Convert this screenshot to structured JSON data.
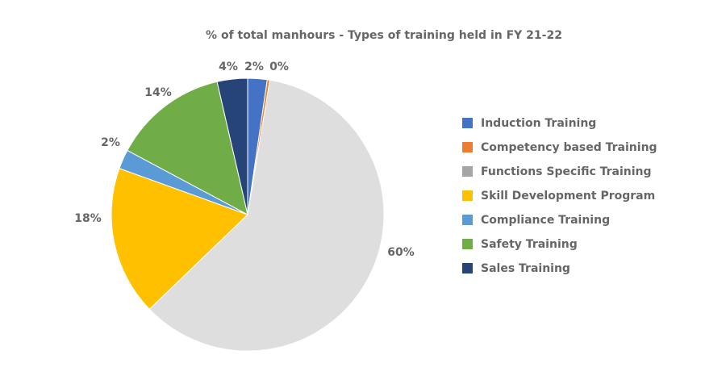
{
  "chart_data": {
    "type": "pie",
    "title": "% of total manhours - Types of training held in FY 21-22",
    "categories": [
      "Induction Training",
      "Competency based Training",
      "Functions Specific Training",
      "Skill Development Program",
      "Compliance Training",
      "Safety Training",
      "Sales Training"
    ],
    "values": [
      2.3,
      0.3,
      60.2,
      17.7,
      2.3,
      13.6,
      3.6
    ],
    "data_labels": [
      "2%",
      "0%",
      "60%",
      "18%",
      "2%",
      "14%",
      "4%"
    ],
    "colors": [
      "#4472C4",
      "#ED7D31",
      "#DEDEDE",
      "#FFC000",
      "#5B9BD5",
      "#70AD47",
      "#264478"
    ],
    "legend_colors": [
      "#4472C4",
      "#ED7D31",
      "#A5A5A5",
      "#FFC000",
      "#5B9BD5",
      "#70AD47",
      "#264478"
    ],
    "start_angle": "12 o'clock",
    "direction": "clockwise",
    "legend_position": "right"
  }
}
